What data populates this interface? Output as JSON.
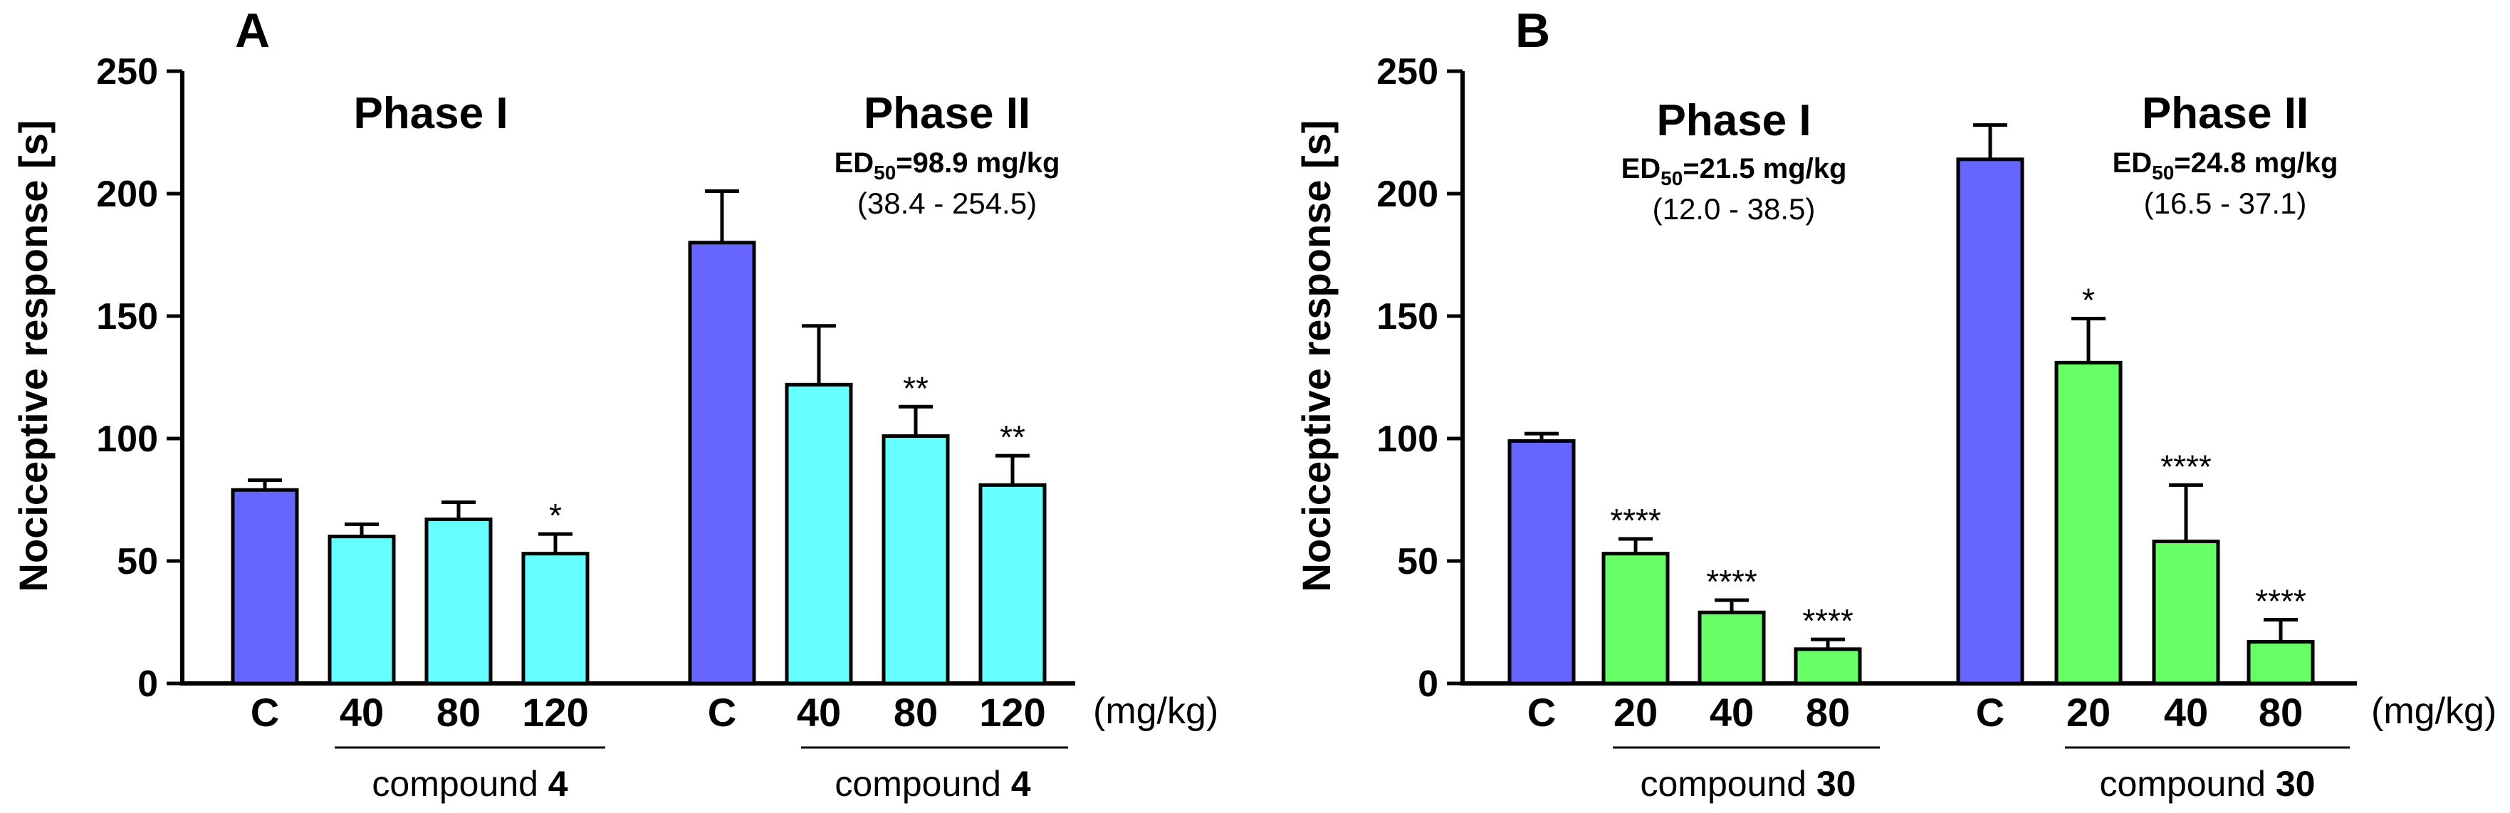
{
  "figure": {
    "panels": [
      {
        "letter": "A",
        "ylabel": "Nociceptive response [s]",
        "yticks": [
          "0",
          "50",
          "100",
          "150",
          "200",
          "250"
        ],
        "unit_label": "(mg/kg)",
        "groups": [
          {
            "title": "Phase I",
            "ed50_prefix": "ED",
            "ed50_sub": "50",
            "ed50_value": "",
            "ci": "",
            "compound_text": "compound ",
            "compound_num": "4"
          },
          {
            "title": "Phase II",
            "ed50_prefix": "ED",
            "ed50_sub": "50",
            "ed50_value": "=98.9 mg/kg",
            "ci": "(38.4 - 254.5)",
            "compound_text": "compound ",
            "compound_num": "4"
          }
        ]
      },
      {
        "letter": "B",
        "ylabel": "Nociceptive response [s]",
        "yticks": [
          "0",
          "50",
          "100",
          "150",
          "200",
          "250"
        ],
        "unit_label": "(mg/kg)",
        "groups": [
          {
            "title": "Phase I",
            "ed50_prefix": "ED",
            "ed50_sub": "50",
            "ed50_value": "=21.5 mg/kg",
            "ci": "(12.0 - 38.5)",
            "compound_text": "compound ",
            "compound_num": "30"
          },
          {
            "title": "Phase II",
            "ed50_prefix": "ED",
            "ed50_sub": "50",
            "ed50_value": "=24.8 mg/kg",
            "ci": "(16.5 - 37.1)",
            "compound_text": "compound ",
            "compound_num": "30"
          }
        ]
      }
    ]
  },
  "chart_data": [
    {
      "type": "bar",
      "panel": "A",
      "title": "",
      "xlabel": "(mg/kg)",
      "ylabel": "Nociceptive response [s]",
      "ylim": [
        0,
        250
      ],
      "ytick_step": 50,
      "colors": {
        "control": "#6666ff",
        "treated": "#66ffff"
      },
      "groups": [
        {
          "name": "Phase I",
          "categories": [
            "C",
            "40",
            "80",
            "120"
          ],
          "values": [
            79,
            60,
            67,
            53
          ],
          "errors": [
            4,
            5,
            7,
            8
          ],
          "significance": [
            "",
            "",
            "",
            "*"
          ]
        },
        {
          "name": "Phase II",
          "categories": [
            "C",
            "40",
            "80",
            "120"
          ],
          "values": [
            180,
            122,
            101,
            81
          ],
          "errors": [
            21,
            24,
            12,
            12
          ],
          "significance": [
            "",
            "",
            "**",
            "**"
          ]
        }
      ]
    },
    {
      "type": "bar",
      "panel": "B",
      "title": "",
      "xlabel": "(mg/kg)",
      "ylabel": "Nociceptive response [s]",
      "ylim": [
        0,
        250
      ],
      "ytick_step": 50,
      "colors": {
        "control": "#6666ff",
        "treated": "#66ff66"
      },
      "groups": [
        {
          "name": "Phase I",
          "categories": [
            "C",
            "20",
            "40",
            "80"
          ],
          "values": [
            99,
            53,
            29,
            14
          ],
          "errors": [
            3,
            6,
            5,
            4
          ],
          "significance": [
            "",
            "****",
            "****",
            "****"
          ]
        },
        {
          "name": "Phase II",
          "categories": [
            "C",
            "20",
            "40",
            "80"
          ],
          "values": [
            214,
            131,
            58,
            17
          ],
          "errors": [
            14,
            18,
            23,
            9
          ],
          "significance": [
            "",
            "*",
            "****",
            "****"
          ]
        }
      ]
    }
  ]
}
